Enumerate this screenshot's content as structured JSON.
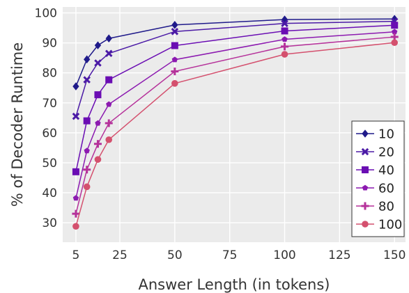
{
  "chart_data": {
    "type": "line",
    "title": "",
    "xlabel": "Answer Length (in tokens)",
    "ylabel": "% of Decoder Runtime",
    "x": [
      5,
      10,
      15,
      20,
      50,
      100,
      150
    ],
    "xlim": [
      -1,
      155
    ],
    "ylim": [
      23.5,
      102
    ],
    "xticks": [
      5,
      25,
      50,
      75,
      100,
      125,
      150
    ],
    "yticks": [
      30,
      40,
      50,
      60,
      70,
      80,
      90,
      100
    ],
    "grid": true,
    "legend_position": "bottom-right",
    "series": [
      {
        "name": "10",
        "color": "#1f1a8a",
        "marker": "diamond",
        "values": [
          75.5,
          84.5,
          89.2,
          91.5,
          96.0,
          97.8,
          98.0
        ]
      },
      {
        "name": "20",
        "color": "#4b1aa6",
        "marker": "x",
        "values": [
          65.5,
          77.7,
          83.3,
          86.5,
          93.8,
          96.5,
          97.2
        ]
      },
      {
        "name": "40",
        "color": "#6a0db3",
        "marker": "square",
        "values": [
          47.0,
          64.0,
          72.7,
          77.7,
          89.1,
          94.0,
          95.9
        ]
      },
      {
        "name": "60",
        "color": "#8c1ab0",
        "marker": "pentagon",
        "values": [
          38.2,
          54.0,
          63.2,
          69.5,
          84.4,
          91.2,
          93.7
        ]
      },
      {
        "name": "80",
        "color": "#b5319a",
        "marker": "plus",
        "values": [
          33.0,
          47.7,
          56.3,
          63.2,
          80.5,
          88.8,
          92.0
        ]
      },
      {
        "name": "100",
        "color": "#d4506e",
        "marker": "circle",
        "values": [
          28.8,
          42.0,
          51.1,
          57.7,
          76.5,
          86.2,
          90.1
        ]
      }
    ]
  }
}
